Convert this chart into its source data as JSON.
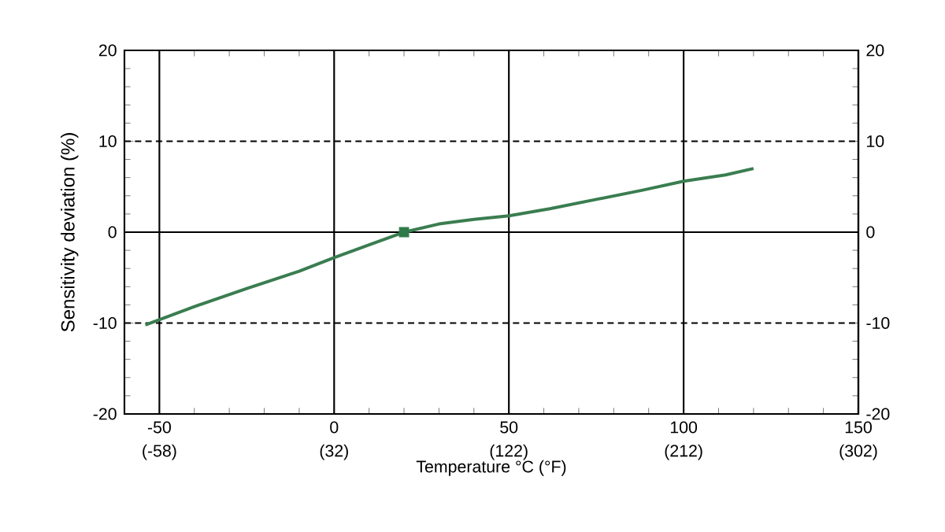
{
  "chart_data": {
    "type": "line",
    "xlabel": "Temperature °C (°F)",
    "ylabel": "Sensitivity deviation (%)",
    "series": [
      {
        "color": "#3a7d50",
        "x": [
          -54,
          -40,
          -25,
          -10,
          0,
          10,
          20,
          30,
          40,
          50,
          62,
          75,
          88,
          100,
          112,
          120
        ],
        "values": [
          -10.2,
          -8.2,
          -6.2,
          -4.3,
          -2.8,
          -1.4,
          0,
          0.9,
          1.4,
          1.8,
          2.6,
          3.6,
          4.6,
          5.6,
          6.3,
          7.0
        ]
      },
      {
        "type": "scatter",
        "marker": "square",
        "color": "#2e7a48",
        "x": [
          20
        ],
        "values": [
          0
        ]
      }
    ],
    "xlim": [
      -60,
      150
    ],
    "xticks": [
      -50,
      0,
      50,
      100,
      150
    ],
    "x2lim": [
      -76,
      302
    ],
    "x2ticks": [
      {
        "value": -58,
        "label": "(-58)"
      },
      {
        "value": 32,
        "label": "(32)"
      },
      {
        "value": 122,
        "label": "(122)"
      },
      {
        "value": 212,
        "label": "(212)"
      },
      {
        "value": 302,
        "label": "(302)"
      }
    ],
    "ylim": [
      -20,
      20
    ],
    "yticks": [
      -20,
      -10,
      0,
      10,
      20
    ],
    "y2lim": [
      -20,
      20
    ],
    "y2ticks": [
      -20,
      -10,
      0,
      10,
      20
    ],
    "grid": "x",
    "ref_lines": [
      {
        "axis": "y",
        "value": 10,
        "line_style": "dashed"
      },
      {
        "axis": "y",
        "value": 0,
        "line_style": "solid"
      },
      {
        "axis": "y",
        "value": -10,
        "line_style": "dashed"
      }
    ]
  }
}
